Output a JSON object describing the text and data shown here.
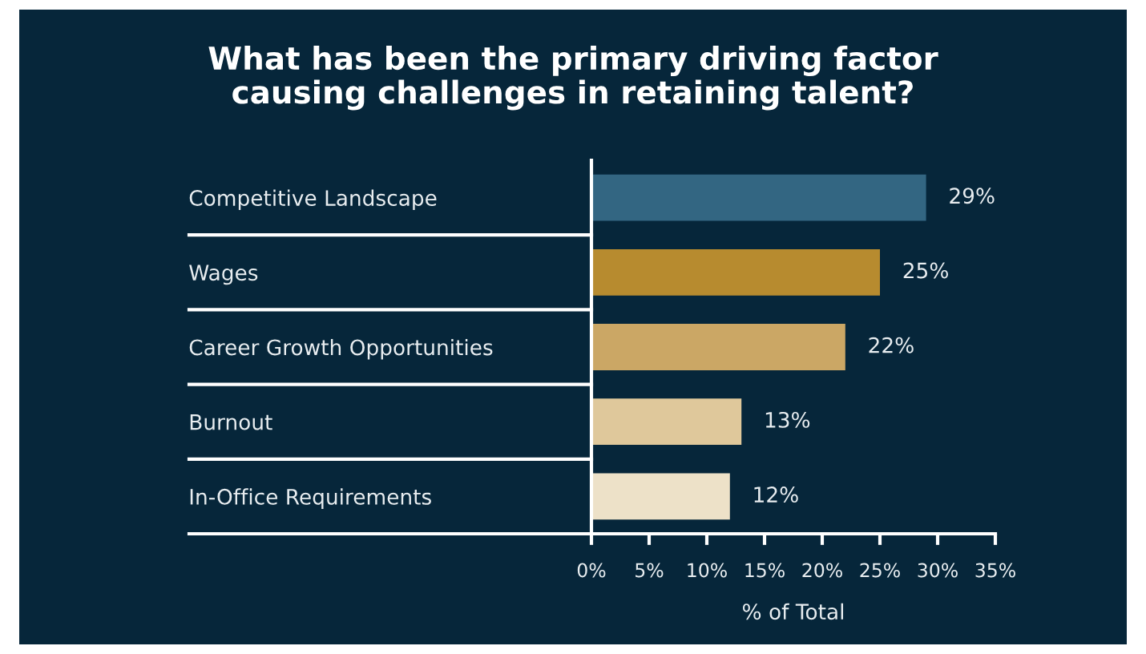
{
  "chart_data": {
    "type": "bar",
    "orientation": "horizontal",
    "title": "What has been the primary driving factor\ncausing challenges in retaining talent?",
    "categories": [
      "Competitive Landscape",
      "Wages",
      "Career Growth Opportunities",
      "Burnout",
      "In-Office Requirements"
    ],
    "values": [
      29,
      25,
      22,
      13,
      12
    ],
    "colors": [
      "#336682",
      "#b78b2f",
      "#cba765",
      "#dfc89b",
      "#ede1c8"
    ],
    "value_labels": [
      "29%",
      "25%",
      "22%",
      "13%",
      "12%"
    ],
    "xlabel": "% of Total",
    "xlim": [
      0,
      35
    ],
    "xticks": [
      {
        "value": 0,
        "label": "0%"
      },
      {
        "value": 5,
        "label": "5%"
      },
      {
        "value": 10,
        "label": "10%"
      },
      {
        "value": 15,
        "label": "15%"
      },
      {
        "value": 20,
        "label": "20%"
      },
      {
        "value": 25,
        "label": "25%"
      },
      {
        "value": 30,
        "label": "30%"
      },
      {
        "value": 35,
        "label": "35%"
      }
    ],
    "grid": false
  }
}
